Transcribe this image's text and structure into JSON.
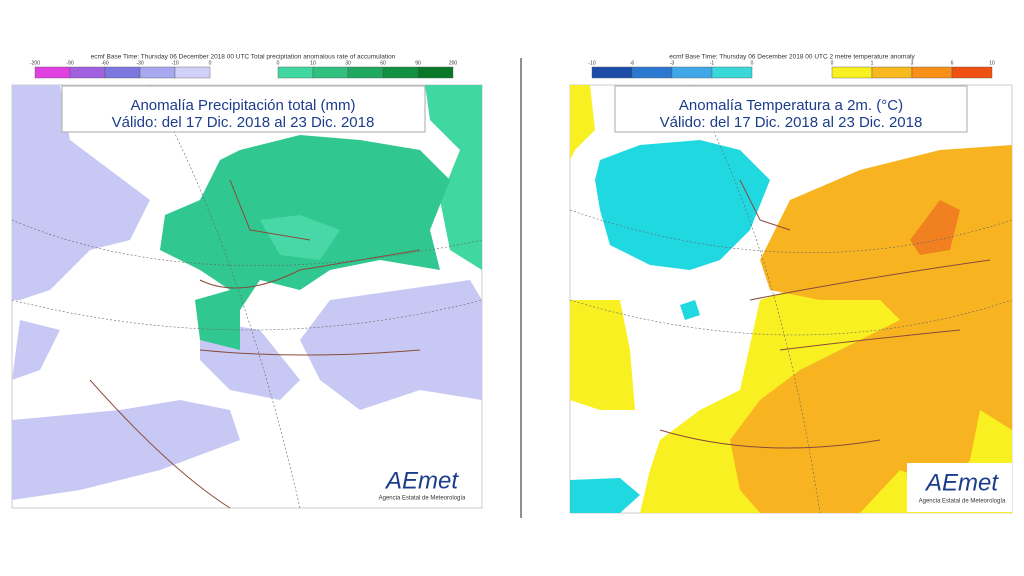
{
  "panels": [
    {
      "header": "ecmf Base Time: Thursday 06 December 2018 00 UTC Total precipitation anomalous rate of accumulation",
      "title_lines": [
        "Anomalía Precipitación total (mm)",
        "Válido: del 17 Dic. 2018 al 23 Dic. 2018"
      ],
      "legend": {
        "negative": {
          "colors": [
            "#e040e0",
            "#a060e0",
            "#7c78e0",
            "#a8a8f0",
            "#d0d0f8"
          ],
          "ticks": [
            -200,
            -90,
            -60,
            -30,
            -10,
            0
          ]
        },
        "positive": {
          "colors": [
            "#40d8a0",
            "#30c080",
            "#20a860",
            "#109040",
            "#087828"
          ],
          "ticks": [
            0,
            10,
            30,
            60,
            90,
            200
          ]
        }
      },
      "logo": {
        "brand": "AEmet",
        "agency": "Agencia Estatal de Meteorología"
      }
    },
    {
      "header": "ecmf Base Time: Thursday 06 December 2018 00 UTC 2 metre temperature anomaly",
      "title_lines": [
        "Anomalía Temperatura a 2m. (°C)",
        "Válido: del 17 Dic. 2018 al 23 Dic. 2018"
      ],
      "legend": {
        "negative": {
          "colors": [
            "#1c4ca8",
            "#2c78d0",
            "#40a8e8",
            "#38d8d8"
          ],
          "ticks": [
            -10,
            -6,
            -3,
            -1,
            0
          ]
        },
        "positive": {
          "colors": [
            "#f8f020",
            "#f8b820",
            "#f89018",
            "#f05010"
          ],
          "ticks": [
            0,
            1,
            3,
            6,
            10
          ]
        }
      },
      "logo": {
        "brand": "AEmet",
        "agency": "Agencia Estatal de Meteorología"
      }
    }
  ]
}
